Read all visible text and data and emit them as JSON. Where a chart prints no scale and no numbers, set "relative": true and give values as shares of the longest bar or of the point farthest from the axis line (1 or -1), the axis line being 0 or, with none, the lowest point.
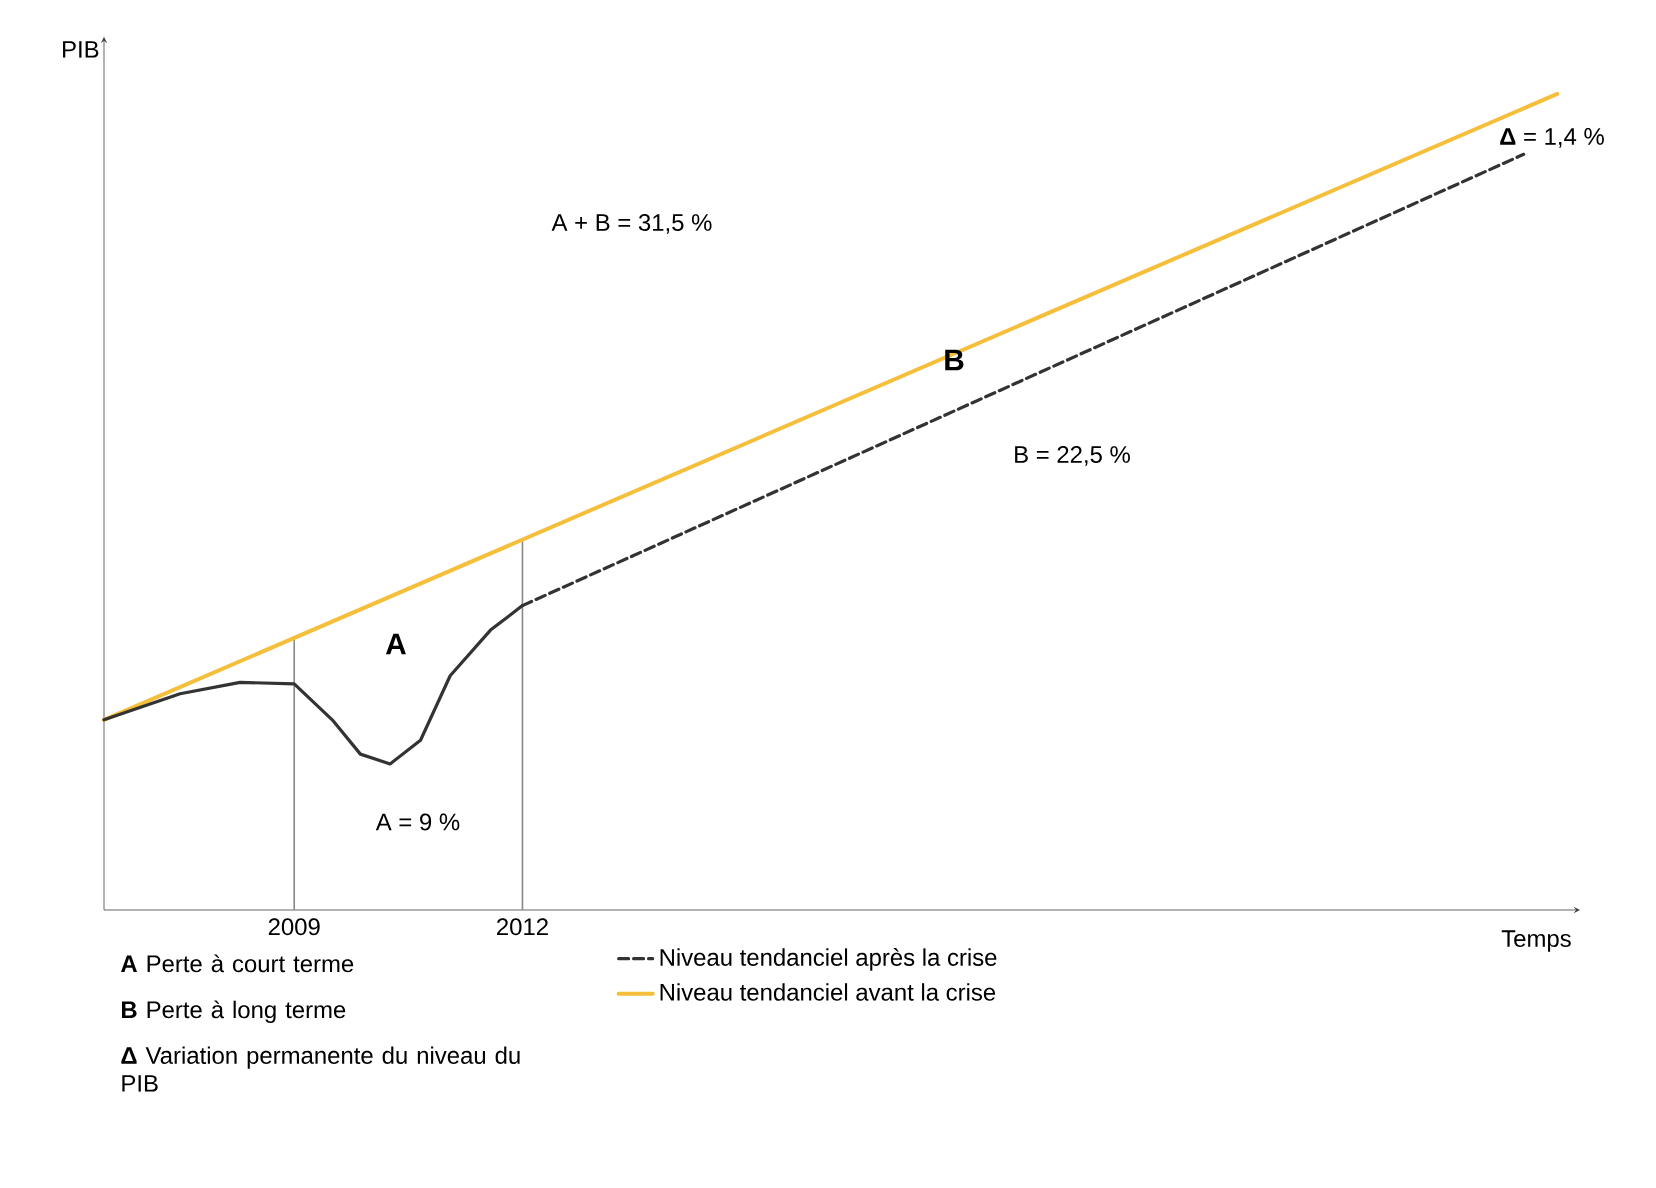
{
  "chart_data": {
    "type": "line",
    "relative": true,
    "xlabel": "Temps",
    "ylabel": "PIB",
    "xlim": [
      2006.5,
      2025.9
    ],
    "xticks": [
      2009,
      2012
    ],
    "grid": false,
    "legend": "bottom",
    "series": [
      {
        "color": "#333333",
        "line_style": "solid",
        "x": [
          2006.5,
          2007.5,
          2008.29,
          2009,
          2009.5,
          2009.87,
          2010.26,
          2010.66,
          2011.05,
          2011.58,
          2012
        ],
        "values": [
          0.233,
          0.265,
          0.279,
          0.277,
          0.233,
          0.191,
          0.179,
          0.208,
          0.287,
          0.343,
          0.373
        ]
      },
      {
        "name": "Niveau tendanciel après la crise",
        "color": "#333333",
        "line_style": "dashed",
        "x": [
          2012,
          2025.16
        ],
        "values": [
          0.373,
          0.926
        ]
      },
      {
        "name": "Niveau tendanciel avant la crise",
        "color": "#f5bf3c",
        "line_style": "solid",
        "x": [
          2006.5,
          2025.6
        ],
        "values": [
          0.233,
          1.0
        ]
      }
    ],
    "ref_lines": [
      {
        "axis": "x",
        "value": 2009,
        "color": "#888888"
      },
      {
        "axis": "x",
        "value": 2012,
        "color": "#888888"
      }
    ],
    "annotations": [
      "A",
      "B",
      "A = 9 %",
      "B = 22,5 %",
      "A + B = 31,5 %",
      "**Δ** = 1,4 %",
      "**A** Perte à court terme",
      "**B** Perte à long terme",
      "**Δ** Variation permanente du niveau du PIB"
    ]
  }
}
